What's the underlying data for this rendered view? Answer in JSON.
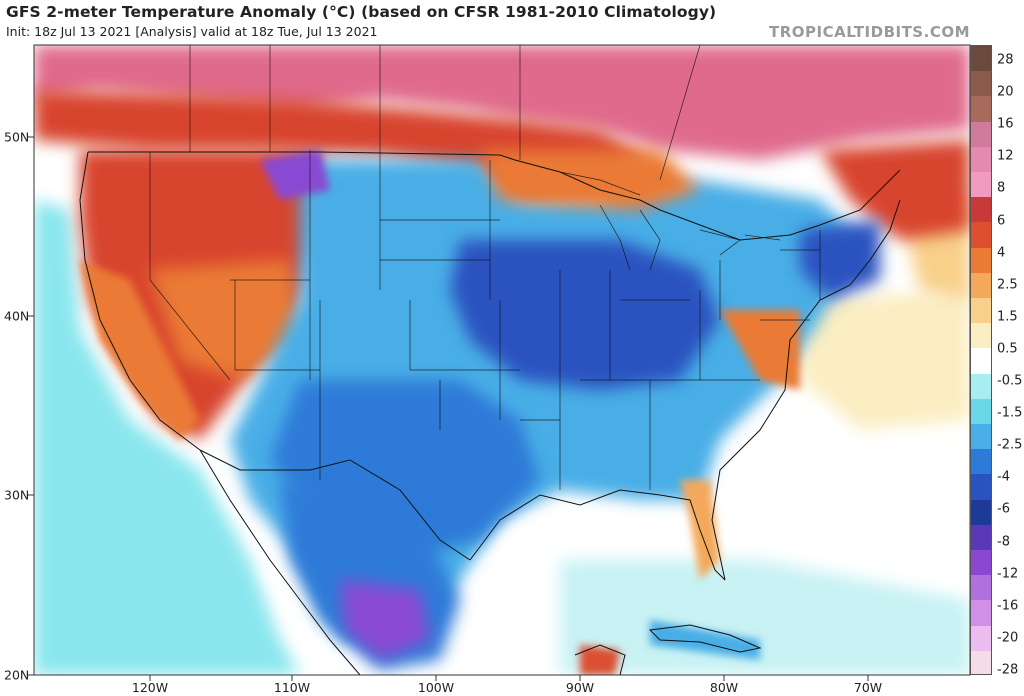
{
  "header": {
    "title": "GFS 2-meter Temperature Anomaly (°C) (based on CFSR 1981-2010 Climatology)",
    "subtitle": "Init: 18z Jul 13 2021   [Analysis]   valid at 18z Tue, Jul 13 2021",
    "watermark": "TROPICALTIDBITS.COM"
  },
  "axes": {
    "lat_labels": [
      "50N",
      "40N",
      "30N",
      "20N"
    ],
    "lon_labels": [
      "120W",
      "110W",
      "100W",
      "90W",
      "80W",
      "70W"
    ]
  },
  "colorbar": {
    "labels": [
      "28",
      "20",
      "16",
      "12",
      "8",
      "6",
      "4",
      "2.5",
      "1.5",
      "0.5",
      "-0.5",
      "-1.5",
      "-2.5",
      "-4",
      "-6",
      "-8",
      "-12",
      "-16",
      "-20",
      "-28"
    ],
    "colors": [
      "#6a4a3c",
      "#8c5a4a",
      "#a86a5a",
      "#d27a9a",
      "#e58aae",
      "#f29ac0",
      "#c83a3a",
      "#dc5030",
      "#ea7a34",
      "#f4a85a",
      "#f8d08a",
      "#fbeec2",
      "#ffffff",
      "#a8eef0",
      "#6ad8e8",
      "#4aaee6",
      "#2e7ad8",
      "#2a52c0",
      "#1e3a98",
      "#5a38b8",
      "#8a48d2",
      "#b070de",
      "#d090e8",
      "#ecbcf0",
      "#f4dce8"
    ]
  },
  "map": {
    "background_colors": {
      "west_warm": "#d8452e",
      "canada_warm": "#e06a8c",
      "central_cool": "#3a6ad0",
      "ocean_neutral": "#ffffff",
      "pacific_cool": "#8ae6ee",
      "atlantic_warm": "#fbeec2"
    }
  }
}
